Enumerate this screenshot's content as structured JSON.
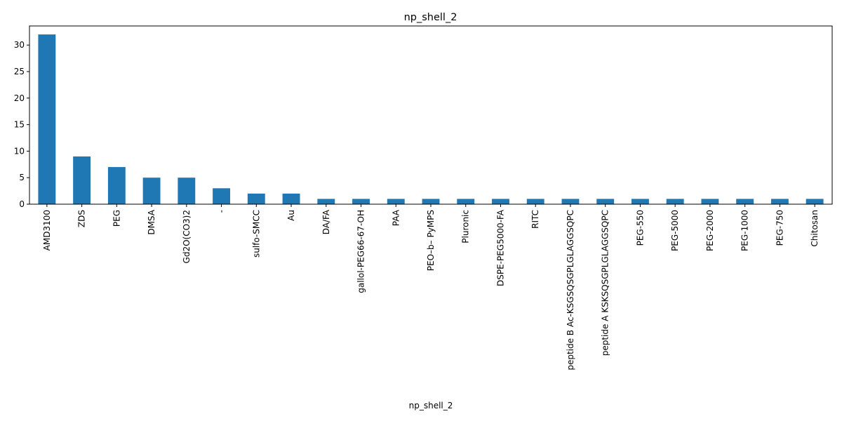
{
  "chart_data": {
    "type": "bar",
    "title": "np_shell_2",
    "xlabel": "np_shell_2",
    "ylabel": "",
    "categories": [
      "AMD3100",
      "ZDS",
      "PEG",
      "DMSA",
      "Gd2O(CO3)2",
      "-",
      "sulfo-SMCC",
      "Au",
      "DA/FA",
      "gallol-PEG66-67-OH",
      "PAA",
      "PEO–b– PyMPS",
      "Pluronic",
      "DSPE-PEG5000-FA",
      "RITC",
      "peptide B Ac-KSGSQSGPLGLAGGSQPC",
      "peptide A KSKSQSGPLGLAGGSQPC",
      "PEG-550",
      "PEG-5000",
      "PEG-2000",
      "PEG-1000",
      "PEG-750",
      "Chitosan"
    ],
    "values": [
      32,
      9,
      7,
      5,
      5,
      3,
      2,
      2,
      1,
      1,
      1,
      1,
      1,
      1,
      1,
      1,
      1,
      1,
      1,
      1,
      1,
      1,
      1
    ],
    "ylim": [
      0,
      33.6
    ],
    "yticks": [
      0,
      5,
      10,
      15,
      20,
      25,
      30
    ],
    "bar_color": "#1f77b4",
    "grid": false,
    "legend": "none"
  }
}
